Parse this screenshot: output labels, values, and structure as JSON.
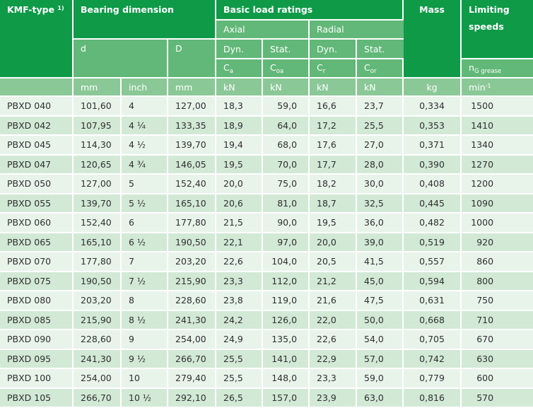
{
  "header": {
    "kmf_type": "KMF-type",
    "kmf_footnote": "1)",
    "bearing_dimension": "Bearing dimension",
    "basic_load_ratings": "Basic load ratings",
    "mass": "Mass",
    "limiting_speeds_line1": "Limiting",
    "limiting_speeds_line2": "speeds",
    "axial": "Axial",
    "radial": "Radial",
    "d": "d",
    "D": "D",
    "dyn": "Dyn.",
    "stat": "Stat.",
    "ca_main": "C",
    "ca_sub": "a",
    "coa_main": "C",
    "coa_sub": "oa",
    "cr_main": "C",
    "cr_sub": "r",
    "cor_main": "C",
    "cor_sub": "or",
    "n_main": "n",
    "n_sub": "G grease"
  },
  "units": {
    "mm1": "mm",
    "inch": "inch",
    "mm2": "mm",
    "kn1": "kN",
    "kn2": "kN",
    "kn3": "kN",
    "kn4": "kN",
    "kg": "kg",
    "min": "min",
    "min_exp": "-1"
  },
  "rows": [
    {
      "type": "PBXD  040",
      "d_mm": "101,60",
      "d_inch": "4",
      "D": "127,00",
      "ca": "18,3",
      "coa": "59,0",
      "cr": "16,6",
      "cor": "23,7",
      "mass": "0,334",
      "speed": "1500"
    },
    {
      "type": "PBXD  042",
      "d_mm": "107,95",
      "d_inch": "4 ¼",
      "D": "133,35",
      "ca": "18,9",
      "coa": "64,0",
      "cr": "17,2",
      "cor": "25,5",
      "mass": "0,353",
      "speed": "1410"
    },
    {
      "type": "PBXD  045",
      "d_mm": "114,30",
      "d_inch": "4 ½",
      "D": "139,70",
      "ca": "19,4",
      "coa": "68,0",
      "cr": "17,6",
      "cor": "27,0",
      "mass": "0,371",
      "speed": "1340"
    },
    {
      "type": "PBXD  047",
      "d_mm": "120,65",
      "d_inch": "4 ¾",
      "D": "146,05",
      "ca": "19,5",
      "coa": "70,0",
      "cr": "17,7",
      "cor": "28,0",
      "mass": "0,390",
      "speed": "1270"
    },
    {
      "type": "PBXD  050",
      "d_mm": "127,00",
      "d_inch": "5",
      "D": "152,40",
      "ca": "20,0",
      "coa": "75,0",
      "cr": "18,2",
      "cor": "30,0",
      "mass": "0,408",
      "speed": "1200"
    },
    {
      "type": "PBXD  055",
      "d_mm": "139,70",
      "d_inch": "5 ½",
      "D": "165,10",
      "ca": "20,6",
      "coa": "81,0",
      "cr": "18,7",
      "cor": "32,5",
      "mass": "0,445",
      "speed": "1090"
    },
    {
      "type": "PBXD  060",
      "d_mm": "152,40",
      "d_inch": "6",
      "D": "177,80",
      "ca": "21,5",
      "coa": "90,0",
      "cr": "19,5",
      "cor": "36,0",
      "mass": "0,482",
      "speed": "1000"
    },
    {
      "type": "PBXD  065",
      "d_mm": "165,10",
      "d_inch": "6 ½",
      "D": "190,50",
      "ca": "22,1",
      "coa": "97,0",
      "cr": "20,0",
      "cor": "39,0",
      "mass": "0,519",
      "speed": "920"
    },
    {
      "type": "PBXD  070",
      "d_mm": "177,80",
      "d_inch": "7",
      "D": "203,20",
      "ca": "22,6",
      "coa": "104,0",
      "cr": "20,5",
      "cor": "41,5",
      "mass": "0,557",
      "speed": "860"
    },
    {
      "type": "PBXD  075",
      "d_mm": "190,50",
      "d_inch": "7 ½",
      "D": "215,90",
      "ca": "23,3",
      "coa": "112,0",
      "cr": "21,2",
      "cor": "45,0",
      "mass": "0,594",
      "speed": "800"
    },
    {
      "type": "PBXD  080",
      "d_mm": "203,20",
      "d_inch": "8",
      "D": "228,60",
      "ca": "23,8",
      "coa": "119,0",
      "cr": "21,6",
      "cor": "47,5",
      "mass": "0,631",
      "speed": "750"
    },
    {
      "type": "PBXD  085",
      "d_mm": "215,90",
      "d_inch": "8 ½",
      "D": "241,30",
      "ca": "24,2",
      "coa": "126,0",
      "cr": "22,0",
      "cor": "50,0",
      "mass": "0,668",
      "speed": "710"
    },
    {
      "type": "PBXD  090",
      "d_mm": "228,60",
      "d_inch": "9",
      "D": "254,00",
      "ca": "24,9",
      "coa": "135,0",
      "cr": "22,6",
      "cor": "54,0",
      "mass": "0,705",
      "speed": "670"
    },
    {
      "type": "PBXD  095",
      "d_mm": "241,30",
      "d_inch": "9 ½",
      "D": "266,70",
      "ca": "25,5",
      "coa": "141,0",
      "cr": "22,9",
      "cor": "57,0",
      "mass": "0,742",
      "speed": "630"
    },
    {
      "type": "PBXD  100",
      "d_mm": "254,00",
      "d_inch": "10",
      "D": "279,40",
      "ca": "25,5",
      "coa": "148,0",
      "cr": "23,3",
      "cor": "59,0",
      "mass": "0,779",
      "speed": "600"
    },
    {
      "type": "PBXD  105",
      "d_mm": "266,70",
      "d_inch": "10 ½",
      "D": "292,10",
      "ca": "26,5",
      "coa": "157,0",
      "cr": "23,9",
      "cor": "63,0",
      "mass": "0,816",
      "speed": "570"
    }
  ],
  "colors": {
    "header_dark": "#0f9a48",
    "header_mid": "#62b878",
    "header_light": "#8bc897",
    "row_light": "#e8f4ea",
    "row_dark": "#d2e9d6"
  }
}
